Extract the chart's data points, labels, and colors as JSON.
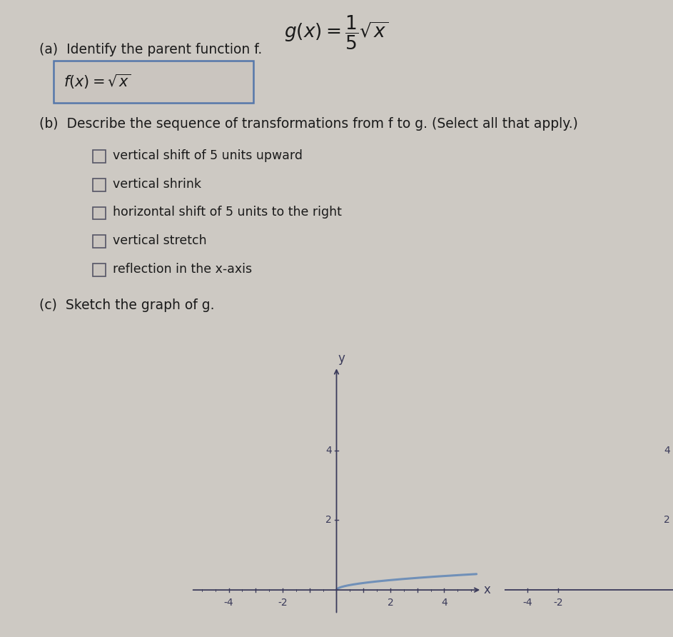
{
  "background_color": "#cdc9c3",
  "page_bg": "#c8c4be",
  "text_color": "#1a1a1a",
  "dark_text": "#2a2a2a",
  "part_a_label": "(a)  Identify the parent function f.",
  "part_b_label": "(b)  Describe the sequence of transformations from f to g. (Select all that apply.)",
  "part_b_options": [
    "vertical shift of 5 units upward",
    "vertical shrink",
    "horizontal shift of 5 units to the right",
    "vertical stretch",
    "reflection in the x-axis"
  ],
  "part_c_label": "(c)  Sketch the graph of g.",
  "curve_color": "#7090b8",
  "axis_color": "#3a3a5a",
  "checkbox_edge": "#555566",
  "box_edge": "#5577aa",
  "x_ticks_labeled": [
    -4,
    -2,
    2,
    4
  ],
  "x_ticks_all": [
    -4,
    -3,
    -2,
    -1,
    1,
    2,
    3,
    4
  ],
  "y_ticks_labeled": [
    2,
    4
  ],
  "graph_xlim": [
    -5.5,
    5.5
  ],
  "graph_ylim": [
    -0.8,
    6.5
  ]
}
